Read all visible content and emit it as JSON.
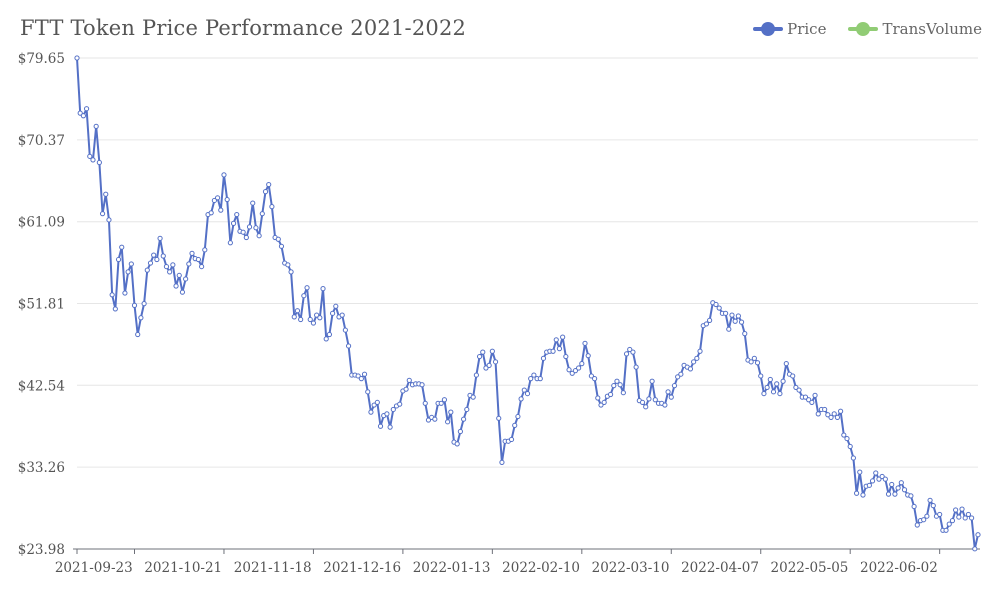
{
  "chart_data": {
    "type": "line",
    "title": "FTT Token Price Performance 2021-2022",
    "xlabel": "",
    "ylabel": "",
    "ylim": [
      23.98,
      79.65
    ],
    "y_ticks": [
      "$79.65",
      "$70.37",
      "$61.09",
      "$51.81",
      "$42.54",
      "$33.26",
      "$23.98"
    ],
    "y_tick_values": [
      79.65,
      70.37,
      61.09,
      51.81,
      42.54,
      33.26,
      23.98
    ],
    "x_ticks": [
      "2021-09-23",
      "2021-10-21",
      "2021-11-18",
      "2021-12-16",
      "2022-01-13",
      "2022-02-10",
      "2022-03-10",
      "2022-04-07",
      "2022-05-05",
      "2022-06-02"
    ],
    "x_tick_days": [
      4,
      32,
      60,
      88,
      116,
      144,
      172,
      200,
      228,
      256
    ],
    "x_start": "2021-09-19",
    "grid": true,
    "legend_position": "top-right",
    "series": [
      {
        "name": "Price",
        "color": "#5470c6",
        "values": [
          79.65,
          73.4,
          73.1,
          73.9,
          68.5,
          68.1,
          71.9,
          67.8,
          62.0,
          64.2,
          61.3,
          52.8,
          51.2,
          56.8,
          58.2,
          53.0,
          55.4,
          56.3,
          51.6,
          48.3,
          50.2,
          51.8,
          55.6,
          56.4,
          57.3,
          56.8,
          59.2,
          57.2,
          56.0,
          55.4,
          56.2,
          53.8,
          55.0,
          53.1,
          54.6,
          56.3,
          57.5,
          56.9,
          56.8,
          56.0,
          57.9,
          61.9,
          62.1,
          63.5,
          63.8,
          62.4,
          66.4,
          63.6,
          58.7,
          60.9,
          61.9,
          60.0,
          59.9,
          59.3,
          60.5,
          63.2,
          60.4,
          59.5,
          62.0,
          64.5,
          65.3,
          62.8,
          59.3,
          59.1,
          58.3,
          56.4,
          56.2,
          55.4,
          50.3,
          51.0,
          50.0,
          52.7,
          53.6,
          50.0,
          49.6,
          50.5,
          50.2,
          53.5,
          47.8,
          48.3,
          50.7,
          51.5,
          50.3,
          50.5,
          48.8,
          47.0,
          43.7,
          43.7,
          43.6,
          43.3,
          43.8,
          41.8,
          39.5,
          40.3,
          40.6,
          37.9,
          39.1,
          39.3,
          37.8,
          39.8,
          40.2,
          40.4,
          41.9,
          42.1,
          43.1,
          42.6,
          42.7,
          42.7,
          42.6,
          40.5,
          38.6,
          38.9,
          38.7,
          40.5,
          40.5,
          40.9,
          38.4,
          39.5,
          36.1,
          35.9,
          37.3,
          38.7,
          39.8,
          41.4,
          41.2,
          43.7,
          45.8,
          46.3,
          44.5,
          44.8,
          46.4,
          45.2,
          38.8,
          33.8,
          36.2,
          36.2,
          36.4,
          38.0,
          39.0,
          41.0,
          42.0,
          41.6,
          43.3,
          43.7,
          43.3,
          43.3,
          45.6,
          46.3,
          46.4,
          46.4,
          47.7,
          46.7,
          48.0,
          45.8,
          44.3,
          43.9,
          44.2,
          44.5,
          45.0,
          47.3,
          45.9,
          43.6,
          43.3,
          41.1,
          40.3,
          40.6,
          41.3,
          41.5,
          42.5,
          43.0,
          42.6,
          41.7,
          46.1,
          46.6,
          46.3,
          44.6,
          40.8,
          40.6,
          40.1,
          41.0,
          43.0,
          40.9,
          40.5,
          40.5,
          40.3,
          41.8,
          41.2,
          42.5,
          43.5,
          43.8,
          44.8,
          44.6,
          44.4,
          45.2,
          45.6,
          46.4,
          49.3,
          49.5,
          49.9,
          51.9,
          51.7,
          51.3,
          50.7,
          50.7,
          48.9,
          50.5,
          49.8,
          50.4,
          49.7,
          48.4,
          45.4,
          45.2,
          45.6,
          45.1,
          43.6,
          41.6,
          42.3,
          43.2,
          41.8,
          42.7,
          41.6,
          43.0,
          45.0,
          43.8,
          43.6,
          42.3,
          42.0,
          41.2,
          41.2,
          40.9,
          40.6,
          41.4,
          39.3,
          39.8,
          39.8,
          39.2,
          38.9,
          39.3,
          38.9,
          39.6,
          36.9,
          36.5,
          35.6,
          34.3,
          30.3,
          32.7,
          30.1,
          31.1,
          31.2,
          31.7,
          32.6,
          31.9,
          32.2,
          31.9,
          30.2,
          31.3,
          30.2,
          30.9,
          31.5,
          30.7,
          30.1,
          30.0,
          28.8,
          26.7,
          27.2,
          27.3,
          27.7,
          29.5,
          28.9,
          27.7,
          27.9,
          26.1,
          26.1,
          26.8,
          27.2,
          28.4,
          27.6,
          28.5,
          27.5,
          27.9,
          27.5,
          24.0,
          25.6
        ]
      },
      {
        "name": "TransVolume",
        "color": "#91cc75",
        "values": []
      }
    ]
  }
}
